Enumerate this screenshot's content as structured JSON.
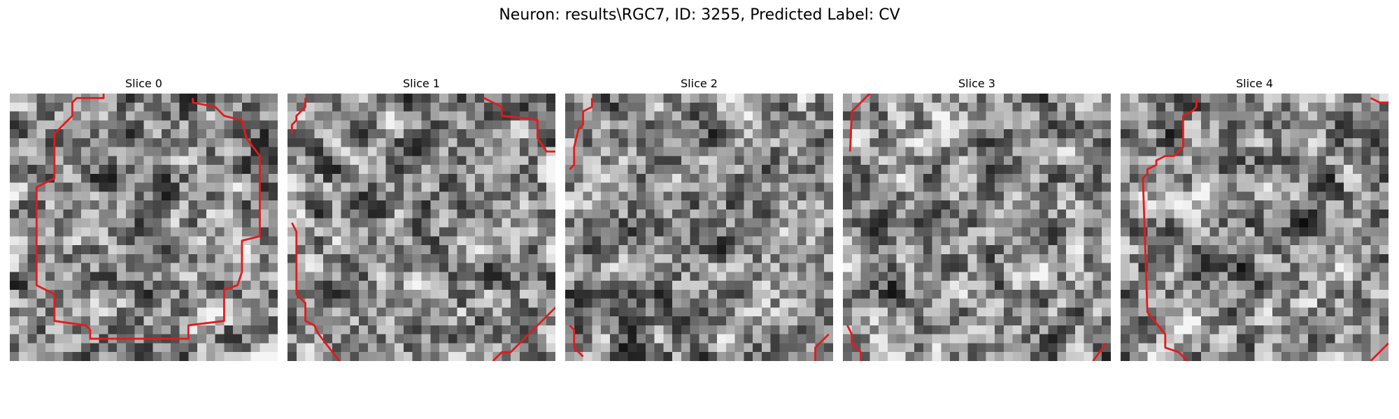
{
  "figure": {
    "title": "Neuron: results\\RGC7, ID: 3255, Predicted Label: CV"
  },
  "contour_color": "#e41a1c",
  "grid_size": 30,
  "slices": [
    {
      "label": "Slice 0",
      "seed": 3255,
      "contours": [
        [
          [
            10.5,
            0
          ],
          [
            10.5,
            0.5
          ],
          [
            7.5,
            0.5
          ],
          [
            7,
            1
          ],
          [
            7,
            2.5
          ],
          [
            5.5,
            4
          ],
          [
            5,
            4.5
          ],
          [
            5,
            9.5
          ],
          [
            4,
            10
          ],
          [
            3,
            10.5
          ],
          [
            3,
            21.5
          ],
          [
            4,
            22
          ],
          [
            5,
            22.5
          ],
          [
            5,
            25.5
          ],
          [
            8.5,
            26
          ],
          [
            9,
            26.5
          ],
          [
            9,
            27.5
          ],
          [
            20,
            27.5
          ],
          [
            20,
            26
          ],
          [
            24,
            25.5
          ],
          [
            24,
            22
          ],
          [
            25.5,
            21.5
          ],
          [
            26,
            20
          ],
          [
            26,
            16.5
          ],
          [
            28,
            16
          ],
          [
            28,
            7
          ],
          [
            26.5,
            5
          ],
          [
            26,
            3
          ],
          [
            24,
            2.5
          ],
          [
            23,
            1.5
          ],
          [
            20.5,
            1
          ],
          [
            20.5,
            0.5
          ]
        ]
      ]
    },
    {
      "label": "Slice 1",
      "seed": 3256,
      "contours": [
        [
          [
            2,
            0.5
          ],
          [
            2,
            1.5
          ],
          [
            1.5,
            2
          ],
          [
            1,
            2.5
          ],
          [
            1,
            3
          ],
          [
            0.5,
            3.5
          ],
          [
            0.5,
            4.5
          ]
        ],
        [
          [
            22,
            0.5
          ],
          [
            23,
            1
          ],
          [
            24,
            1.5
          ],
          [
            24,
            2.5
          ],
          [
            27,
            2.8
          ],
          [
            28,
            3
          ],
          [
            28,
            5
          ],
          [
            29,
            6.5
          ],
          [
            30,
            6.5
          ]
        ],
        [
          [
            0.5,
            14.5
          ],
          [
            1,
            15.5
          ],
          [
            1,
            22.5
          ],
          [
            2,
            23.5
          ],
          [
            2,
            25.5
          ],
          [
            3,
            26
          ],
          [
            3.5,
            27
          ],
          [
            5.8,
            30
          ]
        ],
        [
          [
            23,
            30
          ],
          [
            24,
            29
          ],
          [
            25,
            29
          ],
          [
            30,
            24
          ]
        ]
      ]
    },
    {
      "label": "Slice 2",
      "seed": 3257,
      "contours": [
        [
          [
            3,
            0.5
          ],
          [
            3,
            1.5
          ],
          [
            2,
            2
          ],
          [
            2,
            3.5
          ],
          [
            1.5,
            4
          ],
          [
            1,
            6
          ],
          [
            1,
            8
          ],
          [
            0.5,
            8.5
          ]
        ],
        [
          [
            0.5,
            26
          ],
          [
            1,
            26.5
          ],
          [
            1,
            28.5
          ],
          [
            2,
            29.5
          ]
        ],
        [
          [
            28,
            30
          ],
          [
            28,
            28.5
          ],
          [
            29.5,
            27
          ]
        ]
      ]
    },
    {
      "label": "Slice 3",
      "seed": 3258,
      "contours": [
        [
          [
            3,
            0
          ],
          [
            1,
            2
          ],
          [
            0.8,
            6.5
          ]
        ],
        [
          [
            0.5,
            26
          ],
          [
            1,
            27
          ],
          [
            1,
            28
          ],
          [
            2,
            29
          ],
          [
            2,
            30
          ]
        ],
        [
          [
            28,
            30
          ],
          [
            29.5,
            28
          ]
        ]
      ]
    },
    {
      "label": "Slice 4",
      "seed": 3259,
      "contours": [
        [
          [
            8.5,
            0.5
          ],
          [
            8.5,
            1.5
          ],
          [
            8,
            2
          ],
          [
            7,
            2.5
          ],
          [
            7,
            6
          ],
          [
            6,
            7
          ],
          [
            5,
            7
          ],
          [
            4,
            7.5
          ],
          [
            4,
            8
          ],
          [
            3,
            8.5
          ],
          [
            3,
            9
          ],
          [
            2.5,
            9.5
          ],
          [
            3,
            24.5
          ],
          [
            5,
            27
          ],
          [
            5,
            28.5
          ],
          [
            6.5,
            29
          ],
          [
            7.5,
            30
          ]
        ],
        [
          [
            28,
            0.5
          ],
          [
            29,
            1
          ],
          [
            30,
            1
          ]
        ],
        [
          [
            28,
            30
          ],
          [
            30,
            28
          ]
        ]
      ]
    }
  ]
}
